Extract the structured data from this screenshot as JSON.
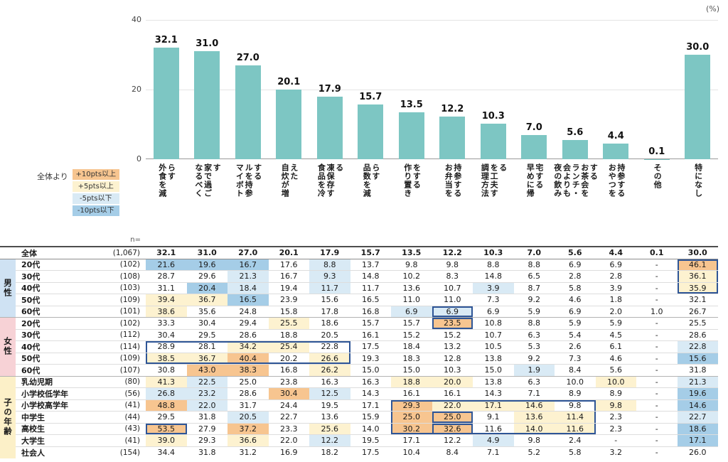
{
  "colors": {
    "bar": "#7dc6c3",
    "box": "#2e5596",
    "plus10": "#f7c590",
    "plus5": "#fdf2d0",
    "minus5": "#d9eaf5",
    "minus10": "#a5cde7",
    "male_bg": "#cfe2f3",
    "female_bg": "#f7d2d6",
    "child_bg": "#fcf0c8"
  },
  "legend": {
    "title": "全体より",
    "items": [
      {
        "label": "+10pts以上",
        "colorKey": "plus10"
      },
      {
        "label": "+5pts以上",
        "colorKey": "plus5"
      },
      {
        "label": "-5pts以下",
        "colorKey": "minus5"
      },
      {
        "label": "-10pts以下",
        "colorKey": "minus10"
      }
    ]
  },
  "chart_data": {
    "type": "bar",
    "title": "",
    "unit": "(%)",
    "categories": [
      "外食を減らす",
      "なるべく家で過ごす",
      "マイボトルを持参する",
      "自炊が増えた",
      "食品を冷凍保存する",
      "品数を減らす",
      "作り置きをする",
      "お弁当を持参する",
      "調理方法を工夫する",
      "早めに帰宅する",
      "夜の飲み会よりもランチ・お茶会をする",
      "おやつを持参する",
      "その他",
      "特になし"
    ],
    "values": [
      32.1,
      31.0,
      27.0,
      20.1,
      17.9,
      15.7,
      13.5,
      12.2,
      10.3,
      7.0,
      5.6,
      4.4,
      0.1,
      30.0
    ],
    "xlabel": "",
    "ylabel": "",
    "ylim": [
      0,
      40
    ],
    "yticks": [
      0,
      20,
      40
    ],
    "grid": true,
    "legend_position": "left-below-plot"
  },
  "table": {
    "n_label": "n=",
    "groups": [
      {
        "key": "male",
        "label": "男性",
        "start": 1,
        "span": 5,
        "colorKey": "male_bg"
      },
      {
        "key": "female",
        "label": "女性",
        "start": 6,
        "span": 5,
        "colorKey": "female_bg"
      },
      {
        "key": "child-age",
        "label": "子の年齢",
        "start": 11,
        "span": 7,
        "colorKey": "child_bg"
      }
    ],
    "rows": [
      {
        "label": "全体",
        "n": "(1,067)",
        "values": [
          32.1,
          31.0,
          27.0,
          20.1,
          17.9,
          15.7,
          13.5,
          12.2,
          10.3,
          7.0,
          5.6,
          4.4,
          0.1,
          30.0
        ]
      },
      {
        "label": "20代",
        "n": "(102)",
        "values": [
          21.6,
          19.6,
          16.7,
          17.6,
          8.8,
          13.7,
          9.8,
          9.8,
          8.8,
          8.8,
          6.9,
          6.9,
          "-",
          46.1
        ]
      },
      {
        "label": "30代",
        "n": "(108)",
        "values": [
          28.7,
          29.6,
          21.3,
          16.7,
          9.3,
          14.8,
          10.2,
          8.3,
          14.8,
          6.5,
          2.8,
          2.8,
          "-",
          36.1
        ]
      },
      {
        "label": "40代",
        "n": "(103)",
        "values": [
          31.1,
          20.4,
          18.4,
          19.4,
          11.7,
          11.7,
          13.6,
          10.7,
          3.9,
          8.7,
          5.8,
          3.9,
          "-",
          35.9
        ]
      },
      {
        "label": "50代",
        "n": "(109)",
        "values": [
          39.4,
          36.7,
          16.5,
          23.9,
          15.6,
          16.5,
          11.0,
          11.0,
          7.3,
          9.2,
          4.6,
          1.8,
          "-",
          32.1
        ]
      },
      {
        "label": "60代",
        "n": "(101)",
        "values": [
          38.6,
          35.6,
          24.8,
          15.8,
          17.8,
          16.8,
          6.9,
          6.9,
          6.9,
          5.9,
          6.9,
          2.0,
          1.0,
          26.7
        ]
      },
      {
        "label": "20代",
        "n": "(102)",
        "values": [
          33.3,
          30.4,
          29.4,
          25.5,
          18.6,
          15.7,
          15.7,
          23.5,
          10.8,
          8.8,
          5.9,
          5.9,
          "-",
          25.5
        ]
      },
      {
        "label": "30代",
        "n": "(112)",
        "values": [
          30.4,
          29.5,
          28.6,
          18.8,
          20.5,
          16.1,
          15.2,
          15.2,
          10.7,
          6.3,
          5.4,
          4.5,
          "-",
          28.6
        ]
      },
      {
        "label": "40代",
        "n": "(114)",
        "values": [
          28.9,
          28.1,
          34.2,
          25.4,
          22.8,
          17.5,
          18.4,
          13.2,
          10.5,
          5.3,
          2.6,
          6.1,
          "-",
          22.8
        ]
      },
      {
        "label": "50代",
        "n": "(109)",
        "values": [
          38.5,
          36.7,
          40.4,
          20.2,
          26.6,
          19.3,
          18.3,
          12.8,
          13.8,
          9.2,
          7.3,
          4.6,
          "-",
          15.6
        ]
      },
      {
        "label": "60代",
        "n": "(107)",
        "values": [
          30.8,
          43.0,
          38.3,
          16.8,
          26.2,
          15.0,
          15.0,
          10.3,
          15.0,
          1.9,
          8.4,
          5.6,
          "-",
          31.8
        ]
      },
      {
        "label": "乳幼児期",
        "n": "(80)",
        "values": [
          41.3,
          22.5,
          25.0,
          23.8,
          16.3,
          16.3,
          18.8,
          20.0,
          13.8,
          6.3,
          10.0,
          10.0,
          "-",
          21.3
        ]
      },
      {
        "label": "小学校低学年",
        "n": "(56)",
        "values": [
          26.8,
          23.2,
          28.6,
          30.4,
          12.5,
          14.3,
          16.1,
          16.1,
          14.3,
          7.1,
          8.9,
          8.9,
          "-",
          19.6
        ]
      },
      {
        "label": "小学校高学年",
        "n": "(41)",
        "values": [
          48.8,
          22.0,
          31.7,
          24.4,
          19.5,
          17.1,
          29.3,
          22.0,
          17.1,
          14.6,
          9.8,
          9.8,
          "-",
          14.6
        ]
      },
      {
        "label": "中学生",
        "n": "(44)",
        "values": [
          29.5,
          31.8,
          20.5,
          22.7,
          13.6,
          15.9,
          25.0,
          25.0,
          9.1,
          13.6,
          11.4,
          2.3,
          "-",
          22.7
        ]
      },
      {
        "label": "高校生",
        "n": "(43)",
        "values": [
          53.5,
          27.9,
          37.2,
          23.3,
          25.6,
          14.0,
          30.2,
          32.6,
          11.6,
          14.0,
          11.6,
          2.3,
          "-",
          18.6
        ]
      },
      {
        "label": "大学生",
        "n": "(41)",
        "values": [
          39.0,
          29.3,
          36.6,
          22.0,
          12.2,
          19.5,
          17.1,
          12.2,
          4.9,
          9.8,
          2.4,
          "-",
          "-",
          17.1
        ]
      },
      {
        "label": "社会人",
        "n": "(154)",
        "values": [
          34.4,
          31.8,
          31.2,
          16.9,
          18.2,
          17.5,
          10.4,
          8.4,
          7.1,
          5.2,
          5.8,
          3.2,
          "-",
          26.0
        ]
      }
    ],
    "boxes": [
      [
        1,
        3,
        13,
        13
      ],
      [
        5,
        5,
        7,
        7
      ],
      [
        6,
        6,
        7,
        7
      ],
      [
        8,
        9,
        0,
        4
      ],
      [
        13,
        15,
        6,
        10
      ],
      [
        14,
        14,
        7,
        7
      ],
      [
        15,
        15,
        7,
        7
      ],
      [
        15,
        15,
        0,
        0
      ]
    ]
  }
}
